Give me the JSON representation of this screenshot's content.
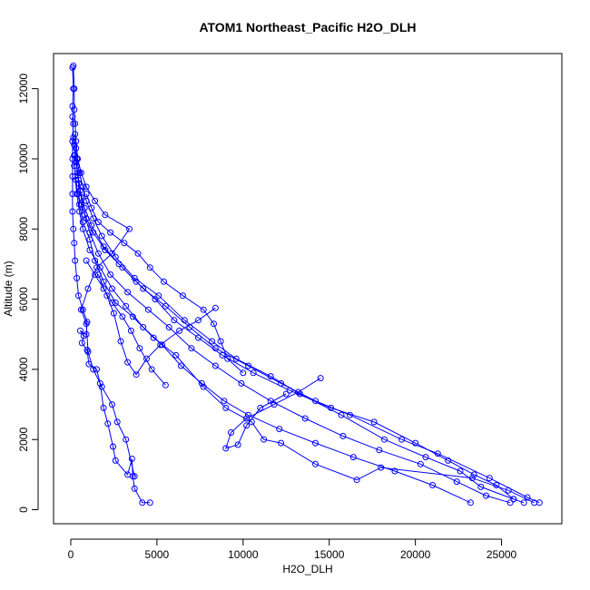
{
  "chart_data": {
    "type": "line",
    "title": "ATOM1 Northeast_Pacific H2O_DLH",
    "xlabel": "H2O_DLH",
    "ylabel": "Altitude (m)",
    "xlim": [
      -1000,
      28500
    ],
    "ylim": [
      -400,
      13000
    ],
    "x_ticks": [
      0,
      5000,
      10000,
      15000,
      20000,
      25000
    ],
    "y_ticks": [
      0,
      2000,
      4000,
      6000,
      8000,
      10000,
      12000
    ],
    "grid": false,
    "legend": "none",
    "line_color": "#0000ff",
    "marker": "open-circle",
    "series": [
      {
        "values": [
          [
            4600,
            200
          ],
          [
            4150,
            200
          ],
          [
            3700,
            600
          ],
          [
            3600,
            950
          ],
          [
            3550,
            1450
          ],
          [
            3300,
            1000
          ],
          [
            2600,
            1400
          ],
          [
            2450,
            1800
          ],
          [
            2150,
            2450
          ],
          [
            1900,
            2900
          ],
          [
            1700,
            3600
          ],
          [
            1500,
            4000
          ],
          [
            1050,
            4150
          ],
          [
            950,
            4550
          ],
          [
            650,
            4750
          ],
          [
            750,
            4950
          ],
          [
            550,
            5100
          ],
          [
            900,
            5000
          ],
          [
            950,
            5350
          ],
          [
            700,
            5700
          ],
          [
            450,
            6100
          ],
          [
            350,
            6600
          ],
          [
            250,
            7100
          ],
          [
            200,
            7600
          ],
          [
            150,
            8000
          ],
          [
            100,
            8500
          ],
          [
            100,
            9000
          ],
          [
            100,
            9500
          ],
          [
            100,
            10000
          ],
          [
            100,
            10500
          ],
          [
            150,
            11000
          ],
          [
            100,
            11500
          ],
          [
            150,
            12000
          ],
          [
            100,
            12600
          ]
        ]
      },
      {
        "values": [
          [
            3700,
            950
          ],
          [
            3200,
            2000
          ],
          [
            2700,
            2500
          ],
          [
            2400,
            3000
          ],
          [
            1800,
            3500
          ],
          [
            1300,
            4000
          ],
          [
            1000,
            4500
          ],
          [
            900,
            5300
          ],
          [
            600,
            5700
          ],
          [
            1000,
            6300
          ],
          [
            1500,
            6900
          ],
          [
            2400,
            7300
          ],
          [
            3400,
            8000
          ],
          [
            2000,
            8400
          ],
          [
            1400,
            8800
          ],
          [
            900,
            9200
          ],
          [
            600,
            9600
          ],
          [
            400,
            10000
          ],
          [
            300,
            10500
          ],
          [
            250,
            11000
          ],
          [
            200,
            11400
          ],
          [
            200,
            12000
          ],
          [
            150,
            12650
          ]
        ]
      },
      {
        "values": [
          [
            26900,
            200
          ],
          [
            25400,
            550
          ],
          [
            23300,
            900
          ],
          [
            18000,
            1200
          ],
          [
            16600,
            850
          ],
          [
            14200,
            1300
          ],
          [
            12200,
            1900
          ],
          [
            11200,
            2000
          ],
          [
            10500,
            2500
          ],
          [
            9000,
            2900
          ],
          [
            7700,
            3500
          ],
          [
            6100,
            4400
          ],
          [
            4800,
            4900
          ],
          [
            3600,
            5500
          ],
          [
            2600,
            5900
          ],
          [
            1900,
            6500
          ],
          [
            1400,
            7100
          ],
          [
            1100,
            7700
          ],
          [
            700,
            8200
          ],
          [
            500,
            8700
          ],
          [
            450,
            9300
          ],
          [
            350,
            9800
          ],
          [
            300,
            10300
          ],
          [
            250,
            10700
          ]
        ]
      },
      {
        "values": [
          [
            27200,
            200
          ],
          [
            26500,
            350
          ],
          [
            24300,
            900
          ],
          [
            21300,
            1600
          ],
          [
            19200,
            2000
          ],
          [
            16200,
            2700
          ],
          [
            14200,
            3100
          ],
          [
            12200,
            3600
          ],
          [
            10300,
            4100
          ],
          [
            8400,
            4600
          ],
          [
            6900,
            5200
          ],
          [
            5500,
            5800
          ],
          [
            4200,
            6300
          ],
          [
            3000,
            6900
          ],
          [
            2000,
            7400
          ],
          [
            1300,
            7900
          ],
          [
            900,
            8300
          ],
          [
            600,
            8700
          ],
          [
            400,
            9000
          ],
          [
            300,
            9400
          ],
          [
            200,
            9800
          ],
          [
            200,
            10100
          ]
        ]
      },
      {
        "values": [
          [
            26300,
            200
          ],
          [
            25700,
            300
          ],
          [
            23800,
            650
          ],
          [
            22600,
            1100
          ],
          [
            20600,
            1500
          ],
          [
            18200,
            2000
          ],
          [
            15700,
            2700
          ],
          [
            13300,
            3300
          ],
          [
            11600,
            3800
          ],
          [
            9600,
            4300
          ],
          [
            8200,
            4800
          ],
          [
            6600,
            5400
          ],
          [
            5100,
            6100
          ],
          [
            3700,
            6600
          ],
          [
            2600,
            7200
          ],
          [
            1800,
            7800
          ],
          [
            1300,
            8300
          ],
          [
            900,
            8800
          ],
          [
            700,
            9200
          ],
          [
            500,
            9600
          ],
          [
            350,
            10000
          ]
        ]
      },
      {
        "values": [
          [
            25500,
            200
          ],
          [
            24100,
            400
          ],
          [
            22400,
            800
          ],
          [
            20300,
            1300
          ],
          [
            17900,
            1700
          ],
          [
            15800,
            2100
          ],
          [
            13600,
            2600
          ],
          [
            11600,
            3100
          ],
          [
            9900,
            3600
          ],
          [
            8400,
            4100
          ],
          [
            7000,
            4600
          ],
          [
            5700,
            5200
          ],
          [
            4500,
            5700
          ],
          [
            3300,
            6200
          ],
          [
            2300,
            6700
          ],
          [
            1600,
            7300
          ],
          [
            1100,
            7900
          ],
          [
            800,
            8400
          ],
          [
            600,
            8900
          ],
          [
            450,
            9400
          ],
          [
            300,
            9900
          ],
          [
            200,
            10400
          ]
        ]
      },
      {
        "values": [
          [
            25700,
            300
          ],
          [
            24700,
            700
          ],
          [
            23400,
            1000
          ],
          [
            21900,
            1400
          ],
          [
            20000,
            1900
          ],
          [
            17600,
            2500
          ],
          [
            15100,
            2900
          ],
          [
            12700,
            3400
          ],
          [
            10600,
            3900
          ],
          [
            8800,
            4400
          ],
          [
            7400,
            4900
          ],
          [
            6000,
            5400
          ],
          [
            4900,
            6000
          ],
          [
            3800,
            6500
          ],
          [
            2800,
            7000
          ],
          [
            1900,
            7500
          ],
          [
            1200,
            8100
          ],
          [
            800,
            8600
          ],
          [
            550,
            9100
          ],
          [
            400,
            9600
          ],
          [
            250,
            10100
          ],
          [
            150,
            10600
          ],
          [
            100,
            11200
          ]
        ]
      },
      {
        "values": [
          [
            23200,
            200
          ],
          [
            21000,
            700
          ],
          [
            18800,
            1100
          ],
          [
            16400,
            1500
          ],
          [
            14200,
            1900
          ],
          [
            12100,
            2300
          ],
          [
            10300,
            2700
          ],
          [
            8900,
            3100
          ],
          [
            7600,
            3600
          ],
          [
            6400,
            4100
          ],
          [
            5300,
            4700
          ],
          [
            4200,
            5200
          ],
          [
            3200,
            5800
          ],
          [
            2400,
            6300
          ],
          [
            1700,
            6900
          ],
          [
            1100,
            7400
          ],
          [
            700,
            8000
          ],
          [
            500,
            8500
          ],
          [
            350,
            9000
          ],
          [
            250,
            9500
          ]
        ]
      },
      {
        "values": [
          [
            14500,
            3750
          ],
          [
            13200,
            3350
          ],
          [
            11800,
            3000
          ],
          [
            10200,
            2600
          ],
          [
            9300,
            2200
          ],
          [
            9000,
            1750
          ],
          [
            9700,
            1850
          ],
          [
            10200,
            2400
          ],
          [
            11000,
            2900
          ],
          [
            12500,
            3300
          ]
        ]
      },
      {
        "values": [
          [
            10000,
            3900
          ],
          [
            9100,
            4300
          ],
          [
            8700,
            4800
          ],
          [
            8300,
            5300
          ],
          [
            7700,
            5700
          ],
          [
            6500,
            6100
          ],
          [
            5400,
            6500
          ],
          [
            4600,
            6900
          ],
          [
            3900,
            7300
          ],
          [
            3100,
            7600
          ],
          [
            2300,
            7900
          ],
          [
            1600,
            8200
          ],
          [
            1200,
            8600
          ],
          [
            900,
            9000
          ]
        ]
      },
      {
        "values": [
          [
            8400,
            5750
          ],
          [
            7400,
            5400
          ],
          [
            6300,
            5100
          ],
          [
            5200,
            4700
          ],
          [
            4400,
            4300
          ],
          [
            3800,
            3850
          ],
          [
            3300,
            4200
          ],
          [
            2900,
            4800
          ],
          [
            2500,
            5600
          ],
          [
            2100,
            6100
          ],
          [
            1600,
            6700
          ]
        ]
      },
      {
        "values": [
          [
            5500,
            3550
          ],
          [
            4700,
            4000
          ],
          [
            4000,
            4600
          ],
          [
            3500,
            5100
          ],
          [
            3000,
            5500
          ],
          [
            2400,
            5900
          ],
          [
            1900,
            6300
          ],
          [
            1400,
            6700
          ],
          [
            900,
            7100
          ]
        ]
      }
    ]
  }
}
